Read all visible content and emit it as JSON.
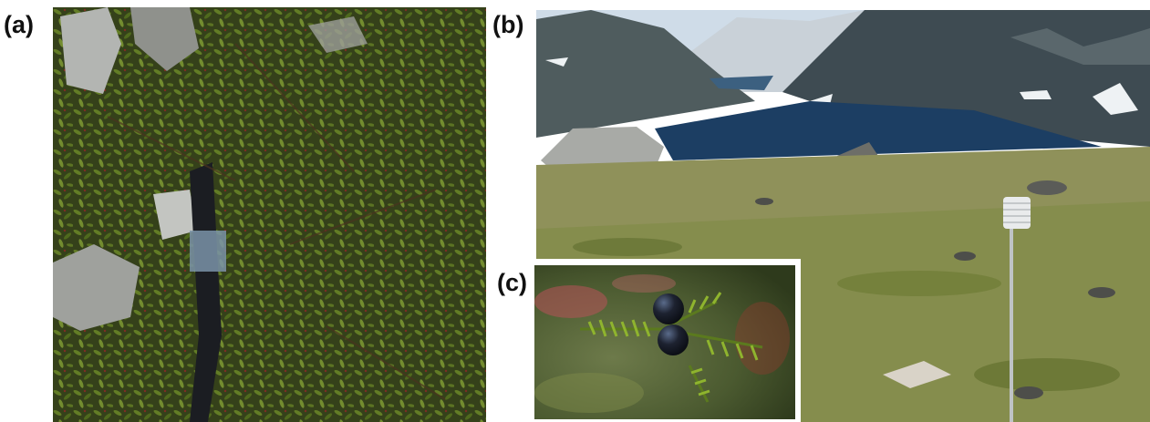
{
  "panels": {
    "a": {
      "label": "(a)"
    },
    "b": {
      "label": "(b)"
    },
    "c": {
      "label": "(c)"
    }
  },
  "colors": {
    "vegetation_dark": "#2f3a1a",
    "vegetation_green": "#6c8a2a",
    "rock_gray": "#a9aaa6",
    "lake_blue": "#1c3e63",
    "sky": "#cfdce8",
    "berry_black": "#1d2230",
    "tundra": "#9a9a5a"
  }
}
